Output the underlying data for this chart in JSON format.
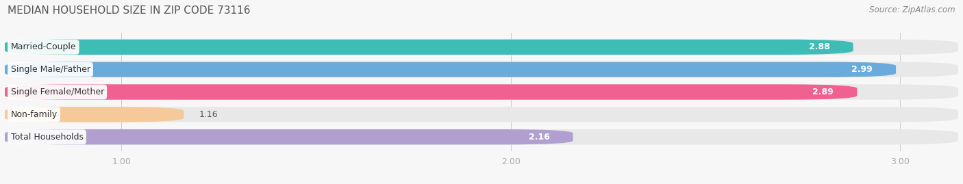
{
  "title": "MEDIAN HOUSEHOLD SIZE IN ZIP CODE 73116",
  "source": "Source: ZipAtlas.com",
  "categories": [
    "Married-Couple",
    "Single Male/Father",
    "Single Female/Mother",
    "Non-family",
    "Total Households"
  ],
  "values": [
    2.88,
    2.99,
    2.89,
    1.16,
    2.16
  ],
  "bar_colors": [
    "#3dbdb5",
    "#6aabdc",
    "#f06090",
    "#f5c99a",
    "#b09fd0"
  ],
  "background_color": "#f7f7f7",
  "bar_bg_color": "#e8e8e8",
  "xmin": 0.7,
  "xmax": 3.15,
  "xticks": [
    1.0,
    2.0,
    3.0
  ],
  "xtick_labels": [
    "1.00",
    "2.00",
    "3.00"
  ],
  "title_fontsize": 11,
  "source_fontsize": 8.5,
  "label_fontsize": 9,
  "value_fontsize": 9
}
